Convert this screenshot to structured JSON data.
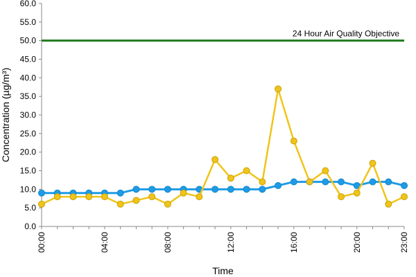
{
  "chart_data": {
    "type": "line",
    "xlabel": "Time",
    "ylabel": "Concentration (µg/m³)",
    "ylim": [
      0,
      60
    ],
    "y_ticks": [
      "0.0",
      "5.0",
      "10.0",
      "15.0",
      "20.0",
      "25.0",
      "30.0",
      "35.0",
      "40.0",
      "45.0",
      "50.0",
      "55.0",
      "60.0"
    ],
    "x_ticks": [
      "00:00",
      "04:00",
      "08:00",
      "12:00",
      "16:00",
      "20:00",
      "23:00"
    ],
    "x": [
      "00:00",
      "01:00",
      "02:00",
      "03:00",
      "04:00",
      "05:00",
      "06:00",
      "07:00",
      "08:00",
      "09:00",
      "10:00",
      "11:00",
      "12:00",
      "13:00",
      "14:00",
      "15:00",
      "16:00",
      "17:00",
      "18:00",
      "19:00",
      "20:00",
      "21:00",
      "22:00",
      "23:00"
    ],
    "series": [
      {
        "color": "#1e9be6",
        "values": [
          9,
          9,
          9,
          9,
          9,
          9,
          10,
          10,
          10,
          10,
          10,
          10,
          10,
          10,
          10,
          11,
          12,
          12,
          12,
          12,
          11,
          12,
          12,
          11
        ]
      },
      {
        "color": "#f0c419",
        "values": [
          6,
          8,
          8,
          8,
          8,
          6,
          7,
          8,
          6,
          9,
          8,
          18,
          13,
          15,
          12,
          37,
          23,
          12,
          15,
          8,
          9,
          17,
          6,
          8
        ]
      }
    ],
    "reference_line": {
      "value": 50,
      "label": "24 Hour Air Quality Objective",
      "color": "#1f7a1f"
    },
    "grid": false,
    "legend": "none"
  }
}
